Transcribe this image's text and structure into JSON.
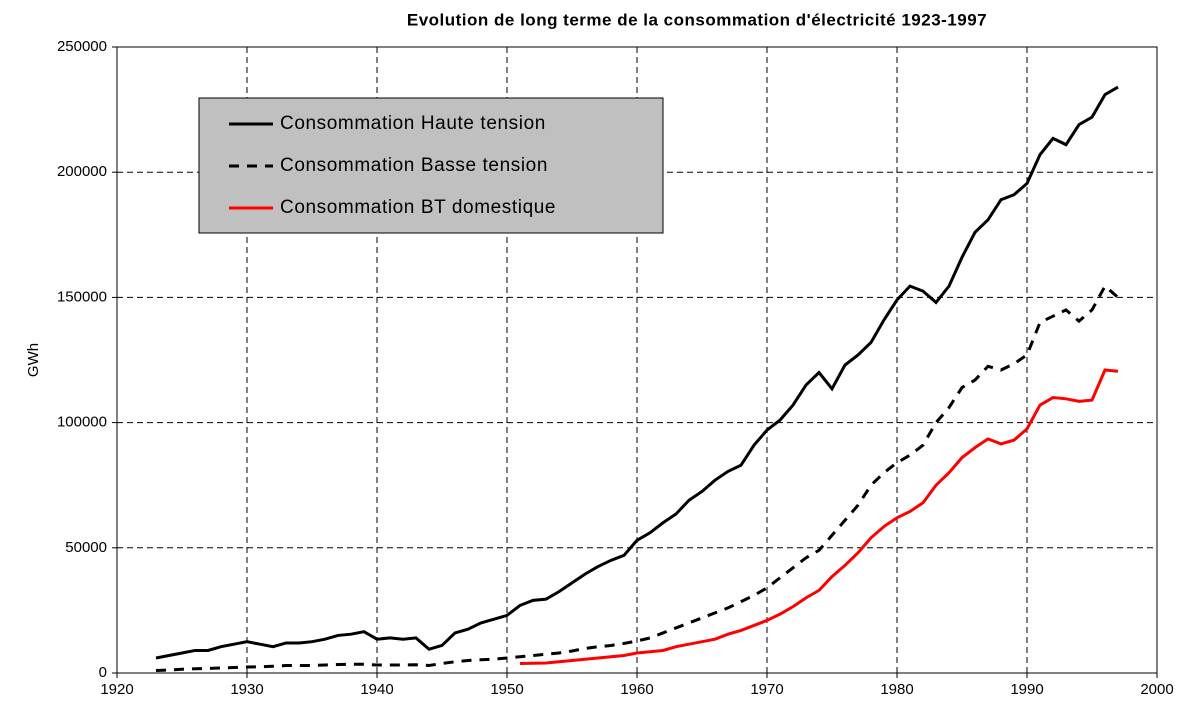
{
  "chart_data": {
    "type": "line",
    "title": "Evolution de long terme de la consommation d'électricité 1923-1997",
    "y_label": "GWh",
    "x": [
      1923,
      1924,
      1925,
      1926,
      1927,
      1928,
      1929,
      1930,
      1931,
      1932,
      1933,
      1934,
      1935,
      1936,
      1937,
      1938,
      1939,
      1940,
      1941,
      1942,
      1943,
      1944,
      1945,
      1946,
      1947,
      1948,
      1949,
      1950,
      1951,
      1952,
      1953,
      1954,
      1955,
      1956,
      1957,
      1958,
      1959,
      1960,
      1961,
      1962,
      1963,
      1964,
      1965,
      1966,
      1967,
      1968,
      1969,
      1970,
      1971,
      1972,
      1973,
      1974,
      1975,
      1976,
      1977,
      1978,
      1979,
      1980,
      1981,
      1982,
      1983,
      1984,
      1985,
      1986,
      1987,
      1988,
      1989,
      1990,
      1991,
      1992,
      1993,
      1994,
      1995,
      1996,
      1997
    ],
    "series": [
      {
        "name": "Consommation Haute tension",
        "color": "#000000",
        "linestyle": "solid",
        "values": [
          6000,
          7000,
          8000,
          9000,
          9000,
          10500,
          11500,
          12500,
          11500,
          10500,
          12000,
          12000,
          12500,
          13500,
          15000,
          15500,
          16500,
          13500,
          14000,
          13500,
          14000,
          9500,
          11000,
          16000,
          17500,
          20000,
          21500,
          23000,
          27000,
          29000,
          29500,
          32500,
          36000,
          39500,
          42500,
          45000,
          47000,
          53000,
          56000,
          60000,
          63500,
          69000,
          72500,
          77000,
          80500,
          83000,
          91000,
          97000,
          101000,
          107000,
          115000,
          120000,
          113500,
          123000,
          127000,
          132000,
          141000,
          149000,
          154500,
          152500,
          148000,
          154500,
          166000,
          176000,
          181000,
          189000,
          191000,
          195500,
          207000,
          213500,
          211000,
          219000,
          222000,
          231000,
          234000
        ]
      },
      {
        "name": "Consommation Basse tension",
        "color": "#000000",
        "linestyle": "dashed",
        "values": [
          1000,
          1200,
          1500,
          1700,
          1800,
          2000,
          2200,
          2400,
          2500,
          2700,
          3000,
          3000,
          3000,
          3200,
          3400,
          3500,
          3500,
          3200,
          3200,
          3200,
          3300,
          3000,
          3800,
          4500,
          5000,
          5300,
          5500,
          6000,
          6500,
          7000,
          7500,
          8000,
          8800,
          9800,
          10500,
          11000,
          11800,
          12800,
          14000,
          16000,
          18000,
          20000,
          22000,
          24000,
          26000,
          28500,
          31000,
          34000,
          38000,
          42000,
          46000,
          49000,
          55000,
          61000,
          67000,
          75000,
          80000,
          84000,
          87000,
          91000,
          100000,
          106000,
          114000,
          117000,
          122500,
          121000,
          123500,
          127000,
          140000,
          142500,
          145000,
          140500,
          145000,
          154500,
          150000
        ]
      },
      {
        "name": "Consommation BT domestique",
        "color": "#ff0000",
        "linestyle": "solid",
        "values": [
          null,
          null,
          null,
          null,
          null,
          null,
          null,
          null,
          null,
          null,
          null,
          null,
          null,
          null,
          null,
          null,
          null,
          null,
          null,
          null,
          null,
          null,
          null,
          null,
          null,
          null,
          null,
          null,
          3800,
          3900,
          4000,
          4500,
          5000,
          5500,
          6000,
          6500,
          7000,
          8000,
          8500,
          9000,
          10500,
          11500,
          12500,
          13500,
          15500,
          17000,
          19000,
          21000,
          23500,
          26500,
          30000,
          33000,
          38500,
          43000,
          48000,
          54000,
          58500,
          62000,
          64500,
          68000,
          75000,
          80000,
          86000,
          90000,
          93500,
          91500,
          93000,
          97500,
          107000,
          110000,
          109500,
          108500,
          109000,
          121000,
          120500
        ]
      }
    ],
    "xlim": [
      1920,
      2000
    ],
    "xticks": [
      1920,
      1930,
      1940,
      1950,
      1960,
      1970,
      1980,
      1990,
      2000
    ],
    "ylim": [
      0,
      250000
    ],
    "yticks": [
      0,
      50000,
      100000,
      150000,
      200000,
      250000
    ],
    "grid": true,
    "legend": "upper left"
  }
}
